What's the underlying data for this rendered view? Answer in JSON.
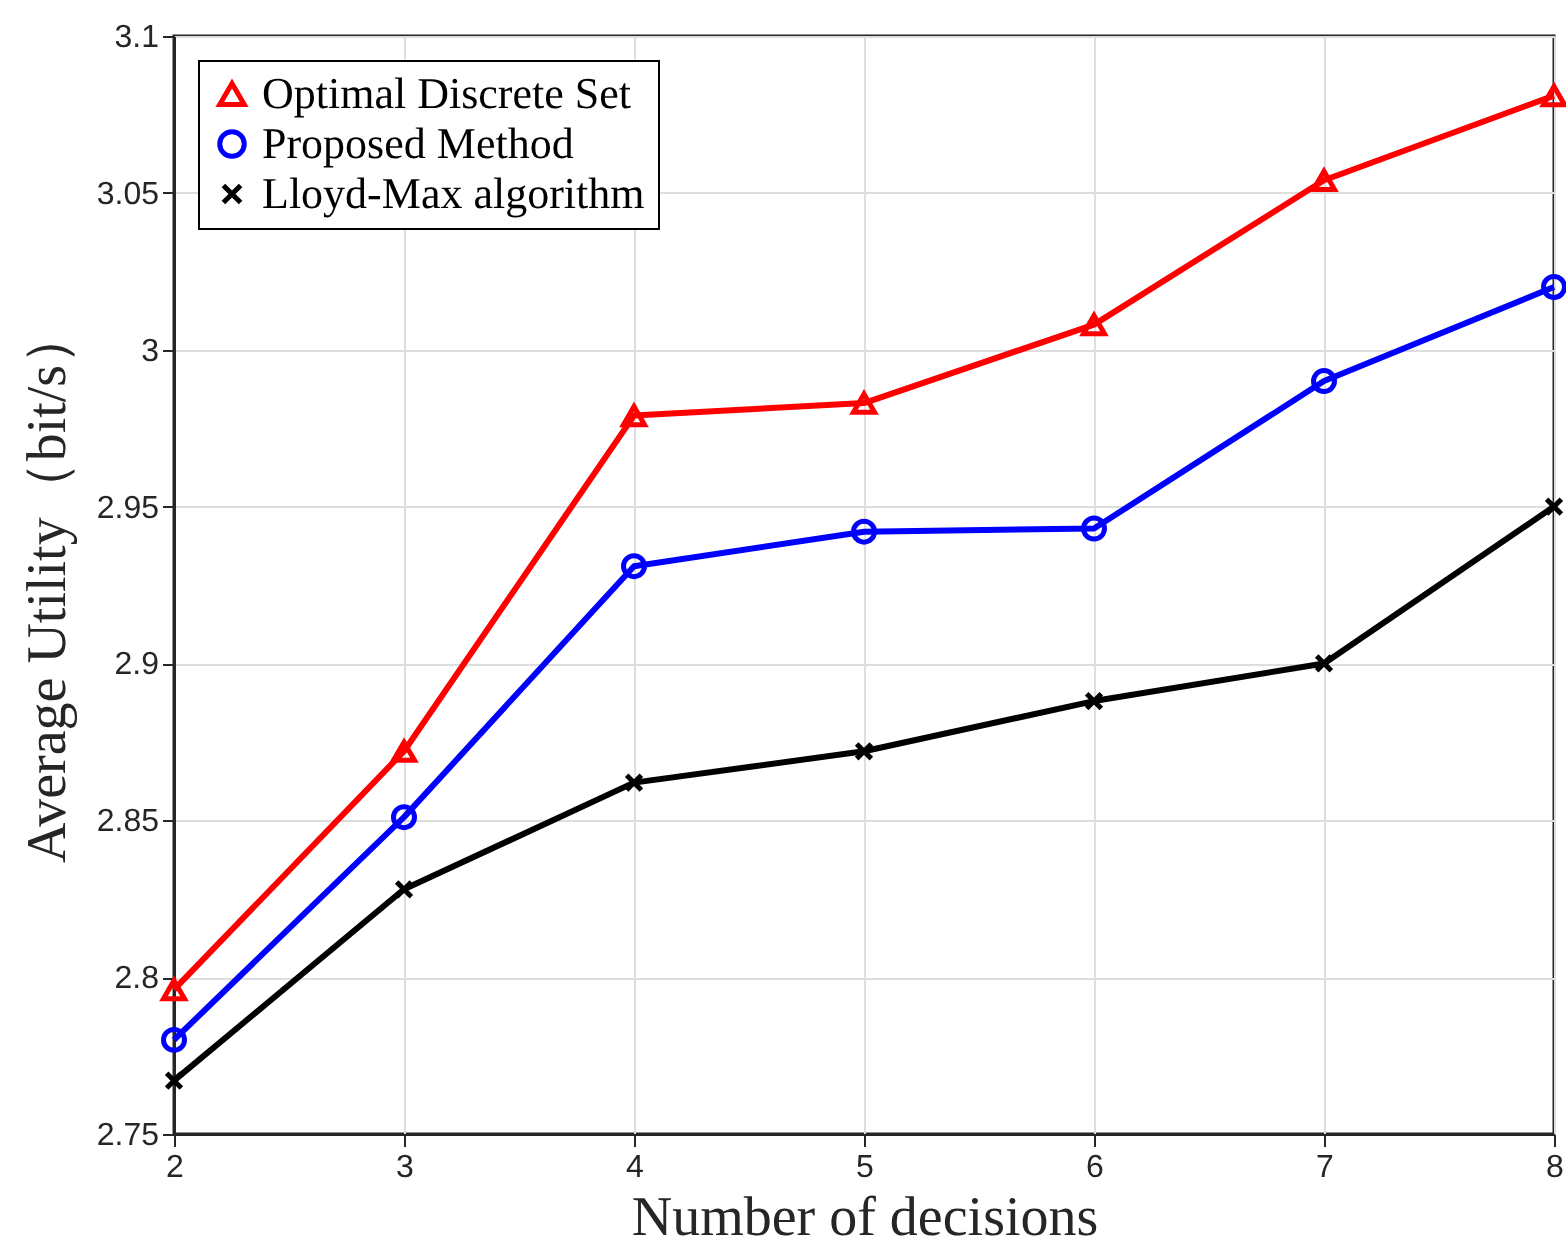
{
  "chart_data": {
    "type": "line",
    "xlabel": "Number of decisions",
    "ylabel": "Average Utility（bit/s）",
    "x": [
      2,
      3,
      4,
      5,
      6,
      7,
      8
    ],
    "series": [
      {
        "name": "Optimal Discrete Set",
        "color": "#ff0000",
        "marker": "triangle",
        "values": [
          2.796,
          2.872,
          2.979,
          2.983,
          3.008,
          3.054,
          3.081
        ]
      },
      {
        "name": "Proposed Method",
        "color": "#0000ff",
        "marker": "circle",
        "values": [
          2.78,
          2.851,
          2.931,
          2.942,
          2.943,
          2.99,
          3.02
        ]
      },
      {
        "name": "Lloyd-Max algorithm",
        "color": "#000000",
        "marker": "cross",
        "values": [
          2.767,
          2.828,
          2.862,
          2.872,
          2.888,
          2.9,
          2.95
        ]
      }
    ],
    "xlim": [
      2,
      8
    ],
    "xticks": [
      2,
      3,
      4,
      5,
      6,
      7,
      8
    ],
    "ylim": [
      2.75,
      3.1
    ],
    "yticks": [
      2.75,
      2.8,
      2.85,
      2.9,
      2.95,
      3,
      3.05,
      3.1
    ],
    "grid": true,
    "legend": "top left",
    "line_style": "solid"
  }
}
